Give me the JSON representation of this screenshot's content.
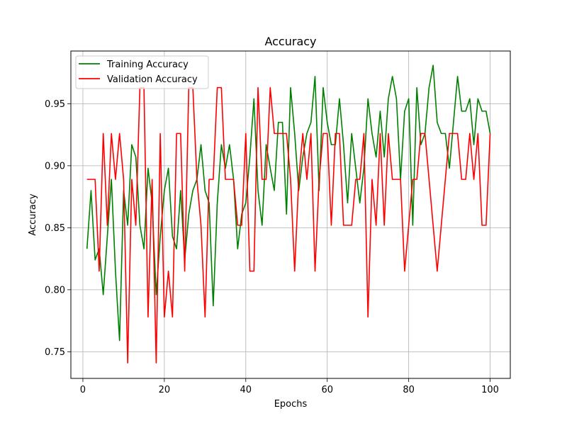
{
  "chart_data": {
    "type": "line",
    "title": "Accuracy",
    "xlabel": "Epochs",
    "ylabel": "Accuracy",
    "xlim": [
      -2.95,
      104.95
    ],
    "ylim": [
      0.7285,
      0.9925
    ],
    "xticks": [
      0,
      20,
      40,
      60,
      80,
      100
    ],
    "yticks": [
      0.75,
      0.8,
      0.85,
      0.9,
      0.95
    ],
    "xtick_labels": [
      "0",
      "20",
      "40",
      "60",
      "80",
      "100"
    ],
    "ytick_labels": [
      "0.75",
      "0.80",
      "0.85",
      "0.90",
      "0.95"
    ],
    "grid": true,
    "legend_position": "upper-left",
    "x": [
      1,
      2,
      3,
      4,
      5,
      6,
      7,
      8,
      9,
      10,
      11,
      12,
      13,
      14,
      15,
      16,
      17,
      18,
      19,
      20,
      21,
      22,
      23,
      24,
      25,
      26,
      27,
      28,
      29,
      30,
      31,
      32,
      33,
      34,
      35,
      36,
      37,
      38,
      39,
      40,
      41,
      42,
      43,
      44,
      45,
      46,
      47,
      48,
      49,
      50,
      51,
      52,
      53,
      54,
      55,
      56,
      57,
      58,
      59,
      60,
      61,
      62,
      63,
      64,
      65,
      66,
      67,
      68,
      69,
      70,
      71,
      72,
      73,
      74,
      75,
      76,
      77,
      78,
      79,
      80,
      81,
      82,
      83,
      84,
      85,
      86,
      87,
      88,
      89,
      90,
      91,
      92,
      93,
      94,
      95,
      96,
      97,
      98,
      99,
      100
    ],
    "series": [
      {
        "name": "Training Accuracy",
        "color": "#008000",
        "values": [
          0.833,
          0.88,
          0.824,
          0.833,
          0.796,
          0.843,
          0.889,
          0.815,
          0.759,
          0.88,
          0.852,
          0.917,
          0.907,
          0.852,
          0.833,
          0.898,
          0.87,
          0.796,
          0.843,
          0.88,
          0.898,
          0.843,
          0.833,
          0.88,
          0.824,
          0.861,
          0.88,
          0.889,
          0.917,
          0.88,
          0.87,
          0.787,
          0.87,
          0.917,
          0.898,
          0.917,
          0.889,
          0.833,
          0.861,
          0.87,
          0.907,
          0.954,
          0.88,
          0.852,
          0.917,
          0.898,
          0.88,
          0.935,
          0.935,
          0.861,
          0.963,
          0.926,
          0.88,
          0.907,
          0.926,
          0.935,
          0.972,
          0.88,
          0.963,
          0.935,
          0.917,
          0.917,
          0.954,
          0.917,
          0.87,
          0.926,
          0.898,
          0.87,
          0.898,
          0.954,
          0.926,
          0.907,
          0.944,
          0.907,
          0.954,
          0.972,
          0.954,
          0.889,
          0.944,
          0.954,
          0.852,
          0.963,
          0.917,
          0.926,
          0.963,
          0.981,
          0.935,
          0.926,
          0.926,
          0.898,
          0.935,
          0.972,
          0.944,
          0.944,
          0.954,
          0.917,
          0.954,
          0.944,
          0.944,
          0.926
        ]
      },
      {
        "name": "Validation Accuracy",
        "color": "#ff0000",
        "values": [
          0.889,
          0.889,
          0.889,
          0.815,
          0.926,
          0.852,
          0.926,
          0.889,
          0.926,
          0.889,
          0.741,
          0.889,
          0.852,
          0.963,
          0.963,
          0.778,
          0.889,
          0.741,
          0.926,
          0.778,
          0.815,
          0.778,
          0.926,
          0.926,
          0.815,
          0.963,
          0.963,
          0.889,
          0.852,
          0.778,
          0.889,
          0.889,
          0.963,
          0.963,
          0.889,
          0.889,
          0.889,
          0.852,
          0.852,
          0.926,
          0.815,
          0.815,
          0.963,
          0.889,
          0.889,
          0.963,
          0.926,
          0.926,
          0.926,
          0.926,
          0.889,
          0.815,
          0.889,
          0.926,
          0.889,
          0.926,
          0.815,
          0.889,
          0.926,
          0.926,
          0.852,
          0.926,
          0.926,
          0.852,
          0.852,
          0.852,
          0.889,
          0.889,
          0.926,
          0.778,
          0.889,
          0.852,
          0.926,
          0.852,
          0.926,
          0.889,
          0.889,
          0.889,
          0.815,
          0.852,
          0.889,
          0.889,
          0.926,
          0.926,
          0.889,
          0.852,
          0.815,
          0.852,
          0.889,
          0.926,
          0.926,
          0.926,
          0.889,
          0.889,
          0.926,
          0.889,
          0.926,
          0.852,
          0.852,
          0.926
        ]
      }
    ]
  }
}
